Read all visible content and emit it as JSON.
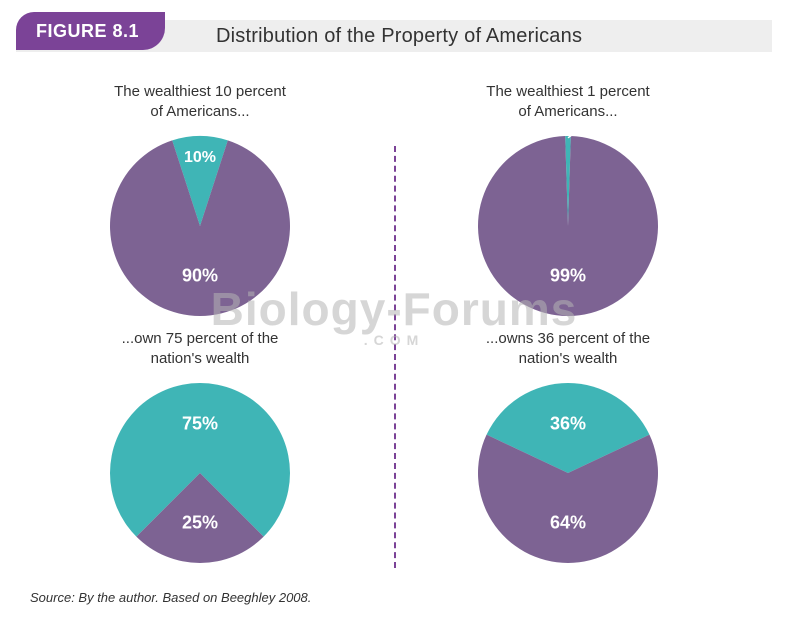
{
  "figure_label": "FIGURE 8.1",
  "title": "Distribution of the Property of Americans",
  "colors": {
    "purple": "#7d6393",
    "teal": "#3fb5b6",
    "badge": "#7b4397",
    "header_bg": "#eeeeee",
    "text": "#333333",
    "white": "#ffffff",
    "divider": "#7b4397",
    "background": "#ffffff"
  },
  "fonts": {
    "family": "Arial, Helvetica, sans-serif",
    "title_size_pt": 20,
    "badge_size_pt": 18,
    "caption_size_pt": 15,
    "pie_label_size_pt": 18,
    "source_size_pt": 13
  },
  "pies": {
    "radius": 90,
    "left_top": {
      "caption": "The wealthiest 10 percent\nof Americans...",
      "type": "pie",
      "slices": [
        {
          "value": 10,
          "label": "10%",
          "color": "#3fb5b6",
          "label_color": "#ffffff",
          "start_angle_deg": -108
        },
        {
          "value": 90,
          "label": "90%",
          "color": "#7d6393",
          "label_color": "#ffffff"
        }
      ],
      "small_slice_label_pos": "inside"
    },
    "left_bottom": {
      "caption": "...own 75 percent of the\nnation's wealth",
      "type": "pie",
      "slices": [
        {
          "value": 75,
          "label": "75%",
          "color": "#3fb5b6",
          "label_color": "#ffffff",
          "start_angle_deg": -225
        },
        {
          "value": 25,
          "label": "25%",
          "color": "#7d6393",
          "label_color": "#ffffff"
        }
      ]
    },
    "right_top": {
      "caption": "The wealthiest 1 percent\nof Americans...",
      "type": "pie",
      "slices": [
        {
          "value": 1,
          "label": "1%",
          "color": "#3fb5b6",
          "label_color": "#ffffff",
          "start_angle_deg": -91.8
        },
        {
          "value": 99,
          "label": "99%",
          "color": "#7d6393",
          "label_color": "#ffffff"
        }
      ],
      "callout": true
    },
    "right_bottom": {
      "caption": "...owns 36 percent of the\nnation's wealth",
      "type": "pie",
      "slices": [
        {
          "value": 36,
          "label": "36%",
          "color": "#3fb5b6",
          "label_color": "#ffffff",
          "start_angle_deg": -154.8
        },
        {
          "value": 64,
          "label": "64%",
          "color": "#7d6393",
          "label_color": "#ffffff"
        }
      ]
    }
  },
  "source": "Source: By the author. Based on Beeghley 2008.",
  "watermark": {
    "text": "Biology-Forums",
    "sub": ".COM"
  }
}
